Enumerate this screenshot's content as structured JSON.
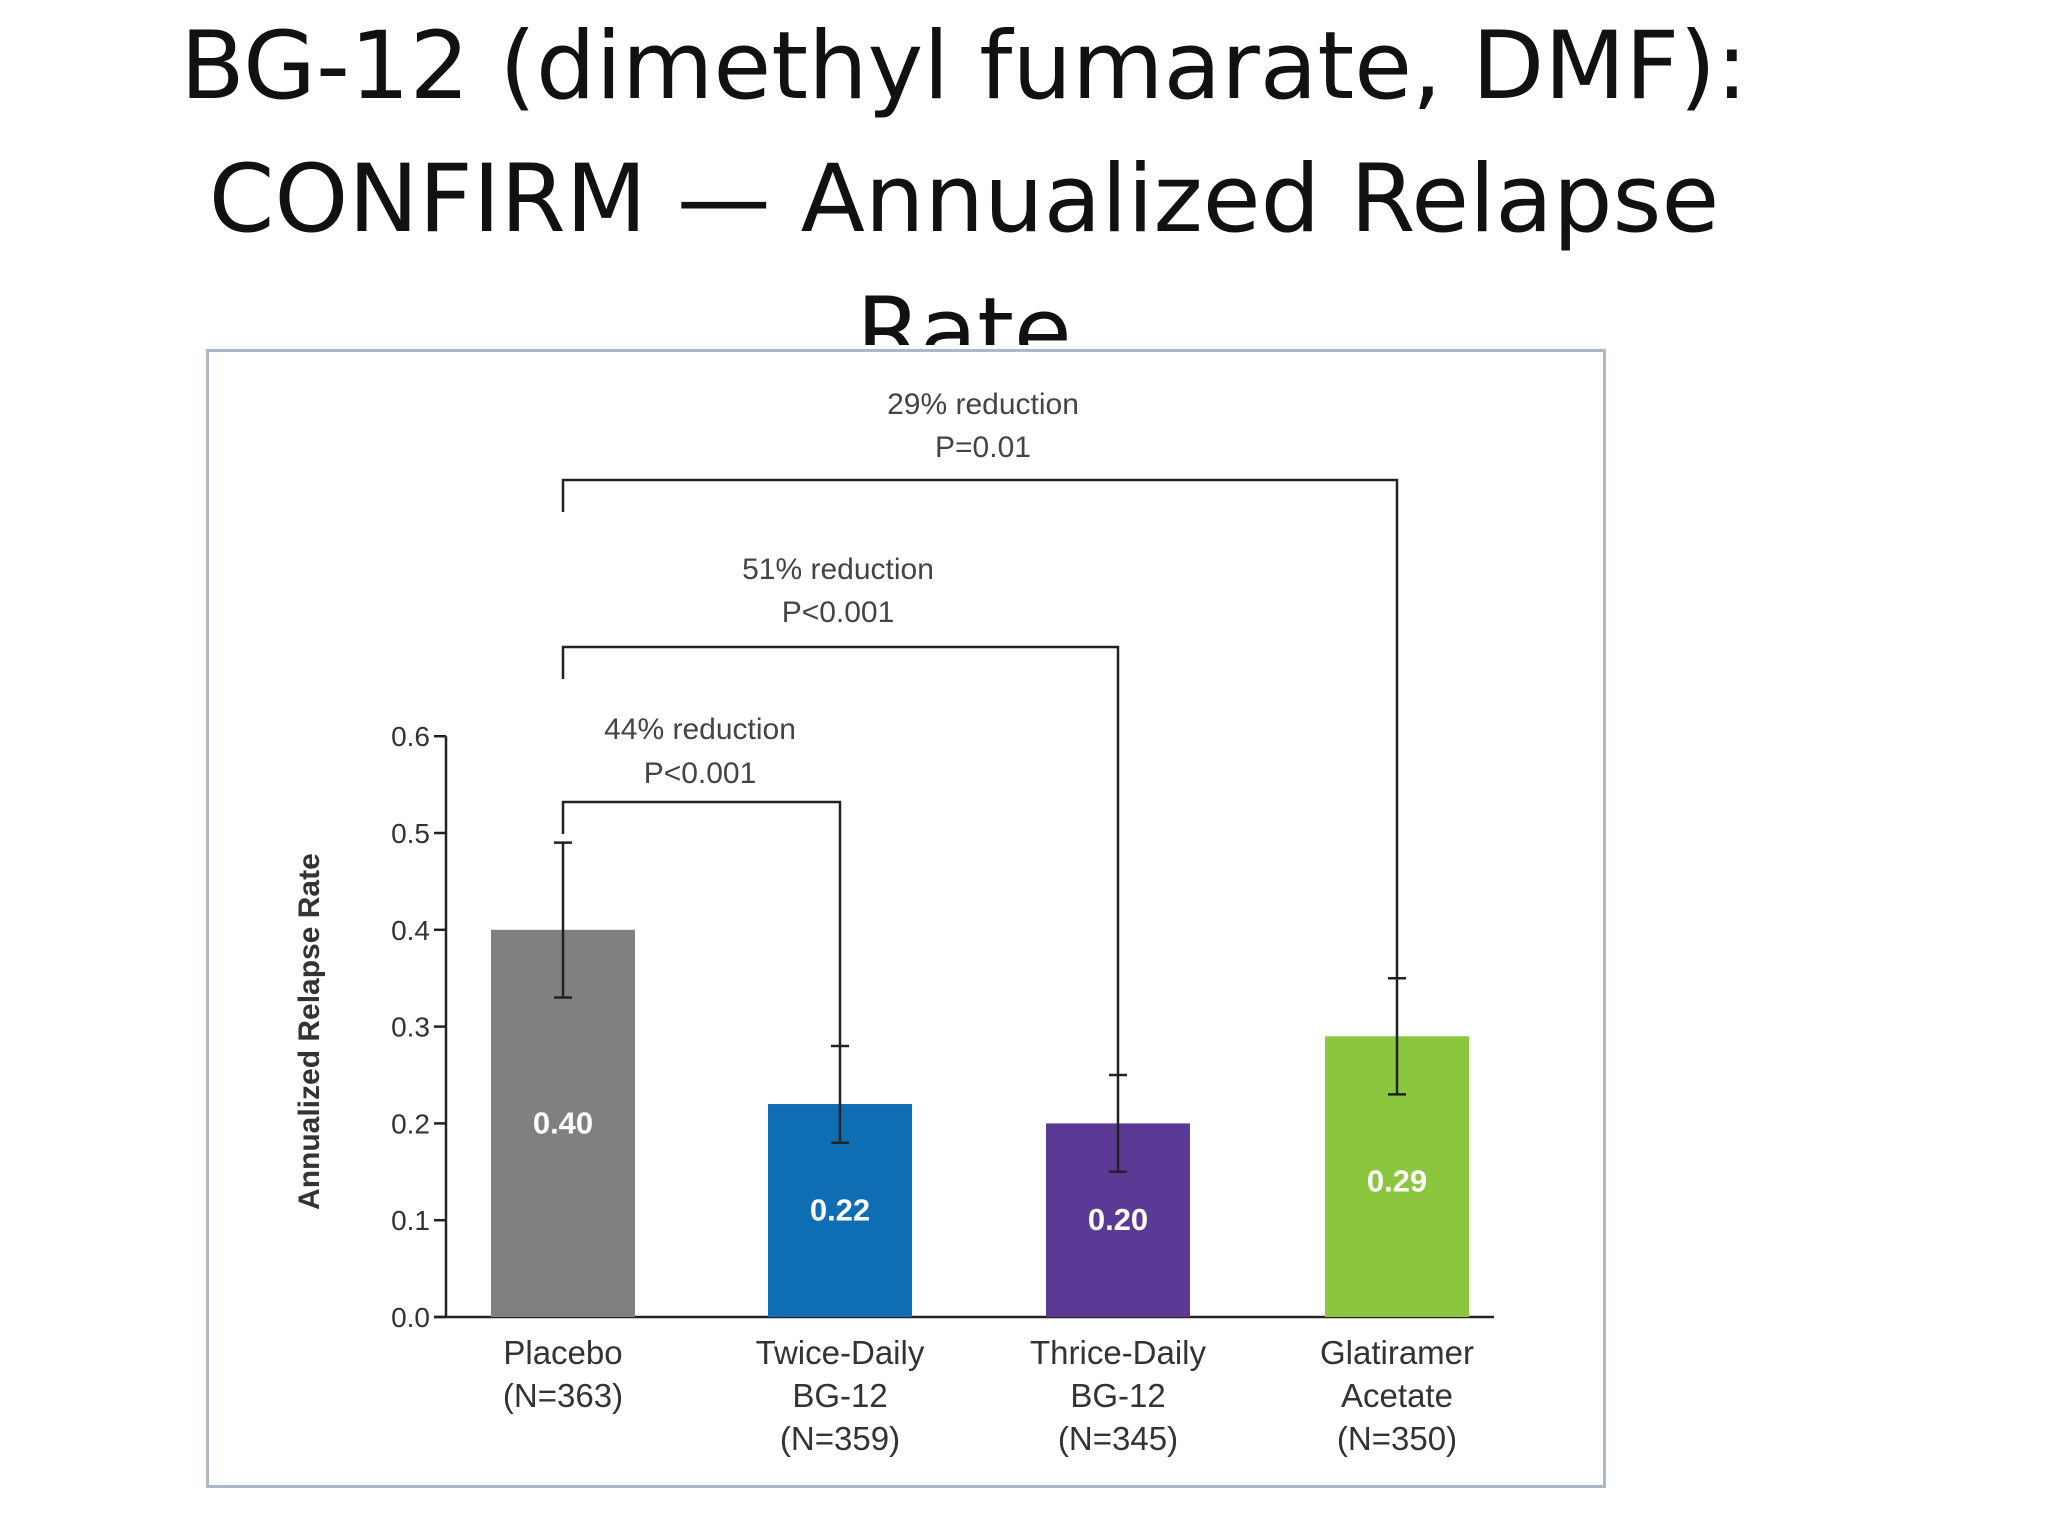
{
  "slide": {
    "title_lines": [
      "BG-12 (dimethyl fumarate, DMF):",
      "CONFIRM — Annualized Relapse",
      "Rate"
    ]
  },
  "chart_data": {
    "type": "bar",
    "title": "",
    "xlabel": "",
    "ylabel": "Annualized Relapse Rate",
    "ylim": [
      0,
      0.6
    ],
    "yticks": [
      0.0,
      0.1,
      0.2,
      0.3,
      0.4,
      0.5,
      0.6
    ],
    "ytick_labels": [
      "0.0",
      "0.1",
      "0.2",
      "0.3",
      "0.4",
      "0.5",
      "0.6"
    ],
    "grid": false,
    "categories": [
      {
        "name": "Placebo",
        "label_lines": [
          "Placebo",
          "(N=363)"
        ]
      },
      {
        "name": "Twice-Daily BG-12",
        "label_lines": [
          "Twice-Daily",
          "BG-12",
          "(N=359)"
        ]
      },
      {
        "name": "Thrice-Daily BG-12",
        "label_lines": [
          "Thrice-Daily",
          "BG-12",
          "(N=345)"
        ]
      },
      {
        "name": "Glatiramer Acetate",
        "label_lines": [
          "Glatiramer",
          "Acetate",
          "(N=350)"
        ]
      }
    ],
    "values": [
      0.4,
      0.22,
      0.2,
      0.29
    ],
    "value_labels": [
      "0.40",
      "0.22",
      "0.20",
      "0.29"
    ],
    "error_low": [
      0.33,
      0.18,
      0.15,
      0.23
    ],
    "error_high": [
      0.49,
      0.28,
      0.25,
      0.35
    ],
    "colors": [
      "#808080",
      "#0f6db3",
      "#5b3a96",
      "#8cc63f"
    ],
    "comparisons": [
      {
        "from": 0,
        "to": 1,
        "lines": [
          "44% reduction",
          "P<0.001"
        ]
      },
      {
        "from": 0,
        "to": 2,
        "lines": [
          "51% reduction",
          "P<0.001"
        ]
      },
      {
        "from": 0,
        "to": 3,
        "lines": [
          "29% reduction",
          "P=0.01"
        ]
      }
    ]
  }
}
